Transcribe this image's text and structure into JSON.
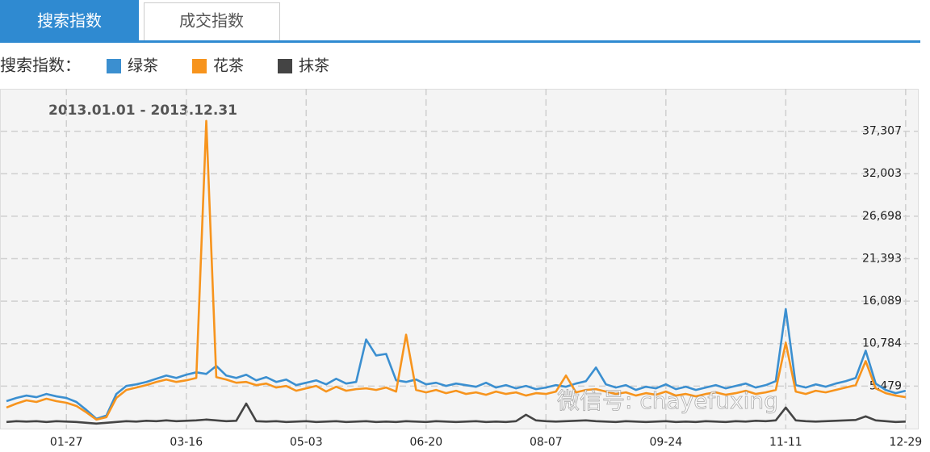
{
  "tabs": [
    "搜索指数",
    "成交指数"
  ],
  "chart_data": {
    "type": "line",
    "legend_title": "搜索指数：",
    "subtitle": "2013.01.01 - 2013.12.31",
    "watermark": "微信号: chayefuxing",
    "x": [
      "01-03",
      "01-07",
      "01-11",
      "01-15",
      "01-19",
      "01-23",
      "01-27",
      "01-31",
      "02-04",
      "02-08",
      "02-12",
      "02-16",
      "02-20",
      "02-24",
      "02-28",
      "03-04",
      "03-08",
      "03-12",
      "03-16",
      "03-20",
      "03-24",
      "03-28",
      "04-01",
      "04-05",
      "04-09",
      "04-13",
      "04-17",
      "04-21",
      "04-25",
      "04-29",
      "05-03",
      "05-07",
      "05-11",
      "05-15",
      "05-19",
      "05-23",
      "05-27",
      "05-31",
      "06-04",
      "06-08",
      "06-12",
      "06-16",
      "06-20",
      "06-24",
      "06-28",
      "07-02",
      "07-06",
      "07-10",
      "07-14",
      "07-18",
      "07-22",
      "07-26",
      "07-30",
      "08-03",
      "08-07",
      "08-11",
      "08-15",
      "08-19",
      "08-23",
      "08-27",
      "08-31",
      "09-04",
      "09-08",
      "09-12",
      "09-16",
      "09-20",
      "09-24",
      "09-28",
      "10-02",
      "10-06",
      "10-10",
      "10-14",
      "10-18",
      "10-22",
      "10-26",
      "10-30",
      "11-03",
      "11-07",
      "11-11",
      "11-15",
      "11-19",
      "11-23",
      "11-27",
      "12-01",
      "12-05",
      "12-09",
      "12-13",
      "12-17",
      "12-21",
      "12-25",
      "12-29"
    ],
    "series": [
      {
        "name": "绿茶",
        "color": "#3b8fd0",
        "values": [
          3600,
          4000,
          4300,
          4100,
          4500,
          4200,
          4000,
          3500,
          2500,
          1400,
          1800,
          4500,
          5500,
          5700,
          6000,
          6400,
          6800,
          6500,
          6900,
          7200,
          7000,
          8000,
          6800,
          6500,
          6900,
          6200,
          6600,
          6000,
          6300,
          5600,
          5900,
          6200,
          5700,
          6400,
          5800,
          6000,
          11300,
          9300,
          9500,
          6200,
          6000,
          6300,
          5700,
          5900,
          5500,
          5800,
          5600,
          5400,
          5900,
          5300,
          5600,
          5200,
          5500,
          5100,
          5300,
          5600,
          5400,
          5800,
          6100,
          7800,
          5700,
          5300,
          5600,
          5000,
          5400,
          5200,
          5700,
          5100,
          5400,
          5000,
          5300,
          5600,
          5200,
          5500,
          5800,
          5300,
          5600,
          6100,
          15100,
          5600,
          5300,
          5700,
          5400,
          5800,
          6100,
          6500,
          9900,
          5800,
          5000,
          4600,
          4900
        ]
      },
      {
        "name": "花茶",
        "color": "#f7941d",
        "values": [
          2800,
          3300,
          3700,
          3500,
          3900,
          3600,
          3400,
          3000,
          2200,
          1300,
          1600,
          4000,
          5000,
          5300,
          5600,
          6000,
          6300,
          6000,
          6200,
          6500,
          38600,
          6600,
          6300,
          5900,
          6000,
          5600,
          5800,
          5300,
          5500,
          4900,
          5200,
          5500,
          4800,
          5400,
          4900,
          5100,
          5200,
          5000,
          5300,
          4800,
          11900,
          5000,
          4700,
          5000,
          4600,
          4900,
          4500,
          4700,
          4400,
          4800,
          4500,
          4700,
          4300,
          4600,
          4500,
          4800,
          6800,
          4700,
          5000,
          5100,
          4800,
          4500,
          4700,
          4300,
          4600,
          4400,
          4800,
          4300,
          4500,
          4200,
          4500,
          4700,
          4400,
          4600,
          4900,
          4500,
          4700,
          5000,
          10900,
          4800,
          4500,
          4900,
          4700,
          5000,
          5300,
          5600,
          8600,
          5200,
          4600,
          4300,
          4100
        ]
      },
      {
        "name": "抹茶",
        "color": "#444444",
        "values": [
          1000,
          1100,
          1050,
          1100,
          1000,
          1100,
          1050,
          1000,
          900,
          800,
          900,
          1000,
          1100,
          1050,
          1150,
          1100,
          1200,
          1100,
          1150,
          1200,
          1300,
          1200,
          1100,
          1150,
          3300,
          1100,
          1050,
          1100,
          1000,
          1050,
          1100,
          1000,
          1050,
          1100,
          1000,
          1050,
          1100,
          1000,
          1050,
          1000,
          1100,
          1050,
          1000,
          1100,
          1050,
          1000,
          1050,
          1100,
          1000,
          1050,
          1000,
          1100,
          1900,
          1200,
          1100,
          1050,
          1100,
          1150,
          1200,
          1100,
          1050,
          1000,
          1100,
          1050,
          1000,
          1050,
          1100,
          1000,
          1050,
          1000,
          1100,
          1050,
          1000,
          1100,
          1050,
          1150,
          1100,
          1200,
          2800,
          1200,
          1100,
          1050,
          1100,
          1150,
          1200,
          1250,
          1700,
          1200,
          1100,
          1000,
          1050
        ]
      }
    ],
    "xticks": [
      "01-27",
      "03-16",
      "05-03",
      "06-20",
      "08-07",
      "09-24",
      "11-11",
      "12-29"
    ],
    "ylim": [
      174,
      42612
    ],
    "yticks": [
      {
        "value": 5479,
        "label": "5,479"
      },
      {
        "value": 10784,
        "label": "10,784"
      },
      {
        "value": 16089,
        "label": "16,089"
      },
      {
        "value": 21393,
        "label": "21,393"
      },
      {
        "value": 26698,
        "label": "26,698"
      },
      {
        "value": 32003,
        "label": "32,003"
      },
      {
        "value": 37307,
        "label": "37,307"
      }
    ],
    "grid": true
  }
}
